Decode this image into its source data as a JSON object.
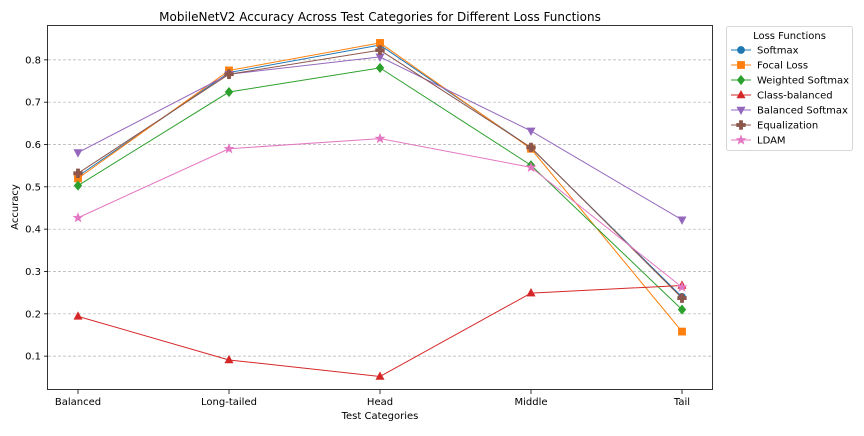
{
  "chart_data": {
    "type": "line",
    "title": "MobileNetV2 Accuracy Across Test Categories for Different Loss Functions",
    "xlabel": "Test Categories",
    "ylabel": "Accuracy",
    "categories": [
      "Balanced",
      "Long-tailed",
      "Head",
      "Middle",
      "Tail"
    ],
    "ylim": [
      0.02,
      0.88
    ],
    "yticks": [
      "0.1",
      "0.2",
      "0.3",
      "0.4",
      "0.5",
      "0.6",
      "0.7",
      "0.8"
    ],
    "grid": "horizontal dashed",
    "legend_title": "Loss Functions",
    "legend_position": "outside-right",
    "series": [
      {
        "name": "Softmax",
        "color": "#1f77b4",
        "marker": "circle",
        "values": [
          0.525,
          0.77,
          0.835,
          0.592,
          0.24
        ]
      },
      {
        "name": "Focal Loss",
        "color": "#ff7f0e",
        "marker": "square",
        "values": [
          0.52,
          0.775,
          0.84,
          0.59,
          0.158
        ]
      },
      {
        "name": "Weighted Softmax",
        "color": "#2ca02c",
        "marker": "diamond",
        "values": [
          0.503,
          0.724,
          0.781,
          0.551,
          0.21
        ]
      },
      {
        "name": "Class-balanced",
        "color": "#d62728",
        "marker": "triangle-up",
        "values": [
          0.194,
          0.091,
          0.052,
          0.249,
          0.267
        ]
      },
      {
        "name": "Balanced Softmax",
        "color": "#9467bd",
        "marker": "triangle-down",
        "values": [
          0.581,
          0.766,
          0.807,
          0.632,
          0.422
        ]
      },
      {
        "name": "Equalization",
        "color": "#8c564b",
        "marker": "plus",
        "values": [
          0.532,
          0.766,
          0.823,
          0.593,
          0.237
        ]
      },
      {
        "name": "LDAM",
        "color": "#e377c2",
        "marker": "star",
        "values": [
          0.427,
          0.59,
          0.614,
          0.546,
          0.263
        ]
      }
    ]
  }
}
